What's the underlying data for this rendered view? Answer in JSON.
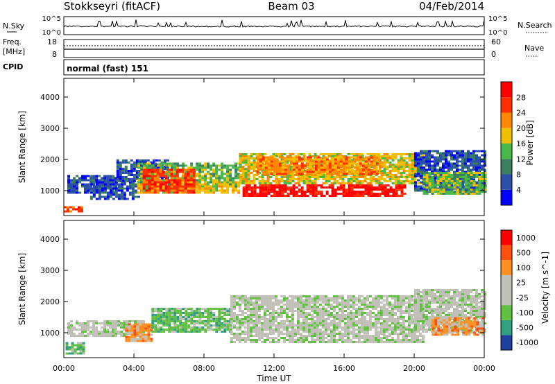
{
  "header": {
    "station": "Stokkseyri (fitACF)",
    "beam": "Beam 03",
    "date": "04/Feb/2014"
  },
  "nsky_panel": {
    "label": "N.Sky",
    "tick_top": "10^5",
    "tick_bottom": "10^0",
    "right_label": "N.Search",
    "right_tick_top": "10^5",
    "right_tick_bottom": "10^0"
  },
  "freq_panel": {
    "label_line1": "Freq.",
    "label_line2": "[MHz]",
    "tick_top": "18",
    "tick_bottom": "8",
    "right_label": "Nave",
    "right_tick_top": "60",
    "right_tick_bottom": "0"
  },
  "cpid_panel": {
    "label": "CPID",
    "value": "normal (fast) 151"
  },
  "chart_data": [
    {
      "type": "heatmap",
      "name": "power",
      "ylabel": "Slant Range [km]",
      "ylim": [
        200,
        4600
      ],
      "yticks": [
        "1000",
        "2000",
        "3000",
        "4000"
      ],
      "colorbar": {
        "label": "Power [dB]",
        "ticks": [
          "4",
          "8",
          "12",
          "16",
          "20",
          "24",
          "28"
        ],
        "colors": [
          "#0000ff",
          "#2c4fa8",
          "#3a8060",
          "#48b848",
          "#f0c000",
          "#ff8800",
          "#ff3000",
          "#ff0000"
        ]
      },
      "regions_time_hours_range_km": [
        {
          "t0": 0.0,
          "t1": 1.0,
          "r0": 300,
          "r1": 500,
          "level": 6
        },
        {
          "t0": 0.2,
          "t1": 3.0,
          "r0": 900,
          "r1": 1500,
          "level": 1
        },
        {
          "t0": 1.5,
          "t1": 4.5,
          "r0": 700,
          "r1": 1300,
          "level": 1
        },
        {
          "t0": 3.0,
          "t1": 6.0,
          "r0": 1300,
          "r1": 2000,
          "level": 1
        },
        {
          "t0": 4.2,
          "t1": 10.0,
          "r0": 1100,
          "r1": 1900,
          "level": 3
        },
        {
          "t0": 4.2,
          "t1": 10.0,
          "r0": 900,
          "r1": 1300,
          "level": 4
        },
        {
          "t0": 4.5,
          "t1": 7.5,
          "r0": 900,
          "r1": 1700,
          "level": 6
        },
        {
          "t0": 10.0,
          "t1": 20.5,
          "r0": 1200,
          "r1": 2200,
          "level": 4
        },
        {
          "t0": 10.2,
          "t1": 19.5,
          "r0": 800,
          "r1": 1200,
          "level": 7
        },
        {
          "t0": 11.0,
          "t1": 18.0,
          "r0": 1500,
          "r1": 2100,
          "level": 5
        },
        {
          "t0": 20.0,
          "t1": 24.0,
          "r0": 1000,
          "r1": 2300,
          "level": 1
        },
        {
          "t0": 20.5,
          "t1": 24.0,
          "r0": 900,
          "r1": 1600,
          "level": 3
        }
      ]
    },
    {
      "type": "heatmap",
      "name": "velocity",
      "ylabel": "Slant Range [km]",
      "ylim": [
        200,
        4600
      ],
      "yticks": [
        "1000",
        "2000",
        "3000",
        "4000"
      ],
      "xlabel": "Time UT",
      "xticks": [
        "00:00",
        "04:00",
        "08:00",
        "12:00",
        "16:00",
        "20:00",
        "00:00"
      ],
      "colorbar": {
        "label": "Velocity [m s^-1]",
        "ticks": [
          "1000",
          "500",
          "100",
          "25",
          "-25",
          "-100",
          "-500",
          "-1000"
        ],
        "colors": [
          "#2040a0",
          "#30a080",
          "#60c040",
          "#c0c0b8",
          "#c0c0b8",
          "#ff9020",
          "#ff5010",
          "#ff0000"
        ]
      },
      "regions_time_hours_range_km": [
        {
          "t0": 0.1,
          "t1": 1.2,
          "r0": 300,
          "r1": 700,
          "level": 2
        },
        {
          "t0": 0.2,
          "t1": 4.5,
          "r0": 900,
          "r1": 1400,
          "level": 3
        },
        {
          "t0": 3.5,
          "t1": 5.0,
          "r0": 700,
          "r1": 1300,
          "level": 5
        },
        {
          "t0": 5.0,
          "t1": 9.5,
          "r0": 1000,
          "r1": 1800,
          "level": 2
        },
        {
          "t0": 9.5,
          "t1": 20.5,
          "r0": 700,
          "r1": 2200,
          "level": 3
        },
        {
          "t0": 20.0,
          "t1": 24.0,
          "r0": 1000,
          "r1": 2400,
          "level": 3
        },
        {
          "t0": 21.0,
          "t1": 24.0,
          "r0": 900,
          "r1": 1500,
          "level": 5
        }
      ]
    }
  ]
}
